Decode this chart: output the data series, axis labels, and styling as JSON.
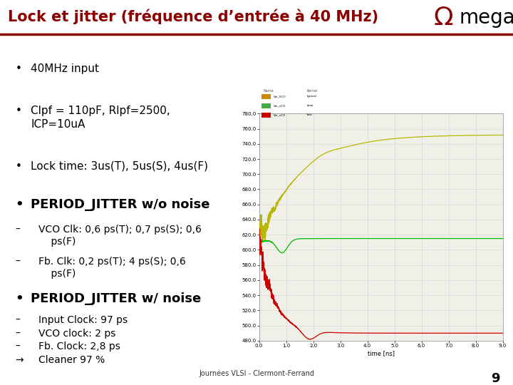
{
  "title": "Lock et jitter (fréquence d’entrée à 40 MHz)",
  "title_color": "#8B0000",
  "title_fontsize": 15,
  "background_color": "#ffffff",
  "omega_text": "mega",
  "omega_symbol": "Ω",
  "separator_color": "#8B0000",
  "footer_text": "Journées VLSI - Clermont-Ferrand",
  "page_number": "9",
  "bullet_fontsize": 11,
  "bullet_bold_fontsize": 13,
  "sub_bullet_fontsize": 10,
  "chart": {
    "x_start": 0.0,
    "x_end": 9.0,
    "y_min": 480.0,
    "y_max": 780.0,
    "x_label": "time [ns]",
    "y_ticks": [
      480.0,
      500.0,
      520.0,
      540.0,
      560.0,
      580.0,
      600.0,
      620.0,
      640.0,
      660.0,
      680.0,
      700.0,
      720.0,
      740.0,
      760.0,
      780.0
    ],
    "x_ticks": [
      0.0,
      1.0,
      2.0,
      3.0,
      4.0,
      5.0,
      6.0,
      7.0,
      8.0,
      9.0
    ],
    "x_tick_labels": [
      "0.0",
      "1.0",
      "2.0",
      "3.0",
      "4.0",
      "5.0",
      "6.0",
      "7.0",
      "8.0",
      "9.0"
    ],
    "grid_color": "#d8d8d8",
    "bg_color": "#f0f0e8",
    "line_yellow": "#b8b800",
    "line_green": "#00bb00",
    "line_red": "#cc0000"
  }
}
